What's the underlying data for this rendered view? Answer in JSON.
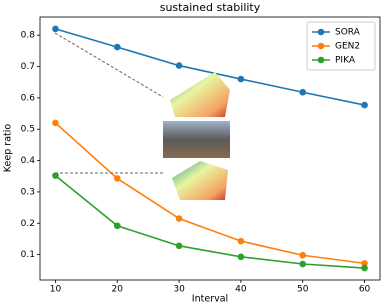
{
  "chart_data": {
    "type": "line",
    "title": "sustained stability",
    "x_label": "Interval",
    "y_label": "Keep ratio",
    "x": [
      10,
      20,
      30,
      40,
      50,
      60
    ],
    "series": [
      {
        "name": "SORA",
        "color": "#1f77b4",
        "values": [
          0.82,
          0.762,
          0.703,
          0.66,
          0.618,
          0.577
        ]
      },
      {
        "name": "GEN2",
        "color": "#ff7f0e",
        "values": [
          0.52,
          0.343,
          0.215,
          0.143,
          0.098,
          0.072
        ]
      },
      {
        "name": "PIKA",
        "color": "#2ca02c",
        "values": [
          0.352,
          0.192,
          0.128,
          0.093,
          0.07,
          0.057
        ]
      }
    ],
    "xlim": [
      7.5,
      62.5
    ],
    "xticks": [
      10,
      20,
      30,
      40,
      50,
      60
    ],
    "ylim": [
      0.019,
      0.858
    ],
    "yticks": [
      0.1,
      0.2,
      0.3,
      0.4,
      0.5,
      0.6,
      0.7,
      0.8
    ],
    "legend": "upper right"
  }
}
